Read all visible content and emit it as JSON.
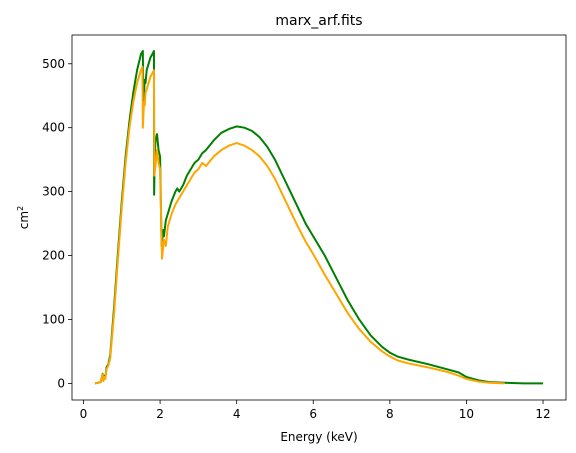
{
  "chart_data": {
    "type": "line",
    "title": "marx_arf.fits",
    "xlabel": "Energy (keV)",
    "ylabel": "cm",
    "ylabel_superscript": "2",
    "xlim": [
      -0.3,
      12.6
    ],
    "ylim": [
      -26,
      545
    ],
    "xticks": [
      0,
      2,
      4,
      6,
      8,
      10,
      12
    ],
    "yticks": [
      0,
      100,
      200,
      300,
      400,
      500
    ],
    "grid": false,
    "series": [
      {
        "color": "#008000",
        "x": [
          0.3,
          0.45,
          0.5,
          0.52,
          0.55,
          0.57,
          0.6,
          0.65,
          0.7,
          0.8,
          0.9,
          1.0,
          1.1,
          1.2,
          1.3,
          1.4,
          1.5,
          1.55,
          1.56,
          1.6,
          1.62,
          1.65,
          1.7,
          1.75,
          1.8,
          1.84,
          1.845,
          1.86,
          1.88,
          1.92,
          1.96,
          2.0,
          2.04,
          2.08,
          2.1,
          2.15,
          2.2,
          2.3,
          2.4,
          2.45,
          2.5,
          2.55,
          2.6,
          2.7,
          2.8,
          2.9,
          3.0,
          3.1,
          3.2,
          3.4,
          3.6,
          3.8,
          4.0,
          4.2,
          4.4,
          4.6,
          4.8,
          5.0,
          5.2,
          5.4,
          5.6,
          5.8,
          6.0,
          6.3,
          6.6,
          6.9,
          7.2,
          7.5,
          7.8,
          8.0,
          8.2,
          8.5,
          9.0,
          9.5,
          9.8,
          10.0,
          10.3,
          10.6,
          11.0,
          11.5,
          12.0
        ],
        "y": [
          0,
          2,
          15,
          4,
          12,
          8,
          25,
          30,
          45,
          120,
          205,
          285,
          355,
          410,
          455,
          490,
          515,
          520,
          435,
          475,
          470,
          490,
          500,
          510,
          515,
          520,
          295,
          355,
          380,
          390,
          365,
          355,
          215,
          240,
          230,
          255,
          265,
          285,
          300,
          305,
          300,
          305,
          310,
          325,
          335,
          345,
          350,
          360,
          365,
          380,
          392,
          398,
          402,
          400,
          395,
          385,
          370,
          350,
          325,
          300,
          275,
          250,
          230,
          200,
          165,
          130,
          100,
          75,
          57,
          48,
          42,
          37,
          30,
          22,
          17,
          10,
          5,
          2,
          1,
          0,
          0
        ]
      },
      {
        "color": "#FFA500",
        "x": [
          0.3,
          0.45,
          0.5,
          0.52,
          0.55,
          0.57,
          0.6,
          0.65,
          0.7,
          0.8,
          0.9,
          1.0,
          1.1,
          1.2,
          1.3,
          1.4,
          1.5,
          1.54,
          1.55,
          1.58,
          1.6,
          1.62,
          1.65,
          1.7,
          1.75,
          1.8,
          1.84,
          1.85,
          1.88,
          1.92,
          1.96,
          2.0,
          2.05,
          2.1,
          2.15,
          2.2,
          2.3,
          2.4,
          2.5,
          2.6,
          2.7,
          2.8,
          2.9,
          3.0,
          3.1,
          3.2,
          3.4,
          3.6,
          3.8,
          4.0,
          4.2,
          4.4,
          4.6,
          4.8,
          5.0,
          5.2,
          5.4,
          5.6,
          5.8,
          6.0,
          6.3,
          6.6,
          6.9,
          7.2,
          7.5,
          7.8,
          8.0,
          8.2,
          8.5,
          9.0,
          9.5,
          9.8,
          10.0,
          10.3,
          10.6,
          11.0
        ],
        "y": [
          0,
          2,
          14,
          4,
          10,
          7,
          22,
          28,
          40,
          110,
          195,
          275,
          345,
          400,
          440,
          470,
          490,
          495,
          400,
          440,
          435,
          455,
          460,
          470,
          480,
          485,
          490,
          325,
          340,
          365,
          345,
          335,
          195,
          225,
          215,
          245,
          265,
          280,
          290,
          300,
          310,
          320,
          330,
          335,
          345,
          340,
          355,
          365,
          372,
          376,
          372,
          365,
          355,
          340,
          320,
          295,
          270,
          245,
          222,
          202,
          170,
          140,
          110,
          85,
          65,
          50,
          42,
          36,
          31,
          25,
          18,
          12,
          7,
          3,
          1,
          0
        ]
      }
    ]
  }
}
